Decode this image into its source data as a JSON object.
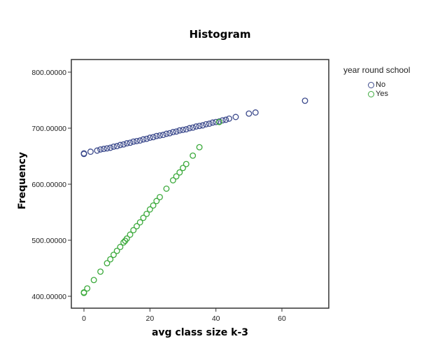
{
  "chart_data": {
    "type": "scatter",
    "title": "Histogram",
    "xlabel": "avg class size k-3",
    "ylabel": "Frequency",
    "xlim": [
      -4,
      74
    ],
    "ylim": [
      378,
      822
    ],
    "x_ticks": [
      0,
      20,
      40,
      60
    ],
    "y_ticks": [
      400,
      500,
      600,
      700,
      800
    ],
    "y_tick_labels": [
      "400.00000",
      "500.00000",
      "600.00000",
      "700.00000",
      "800.00000"
    ],
    "grid": false,
    "legend": {
      "title": "year round school",
      "position": "right"
    },
    "series": [
      {
        "name": "No",
        "color": "#3c4a8c",
        "points": [
          [
            0,
            655
          ],
          [
            0,
            654
          ],
          [
            2,
            658
          ],
          [
            4,
            660
          ],
          [
            5,
            662
          ],
          [
            6,
            663
          ],
          [
            7,
            664
          ],
          [
            8,
            665
          ],
          [
            9,
            667
          ],
          [
            10,
            668
          ],
          [
            11,
            670
          ],
          [
            12,
            671
          ],
          [
            13,
            673
          ],
          [
            14,
            674
          ],
          [
            15,
            676
          ],
          [
            16,
            677
          ],
          [
            17,
            678
          ],
          [
            18,
            680
          ],
          [
            19,
            681
          ],
          [
            20,
            683
          ],
          [
            21,
            684
          ],
          [
            22,
            686
          ],
          [
            23,
            687
          ],
          [
            24,
            688
          ],
          [
            25,
            690
          ],
          [
            26,
            691
          ],
          [
            27,
            693
          ],
          [
            28,
            694
          ],
          [
            29,
            696
          ],
          [
            30,
            697
          ],
          [
            31,
            698
          ],
          [
            32,
            700
          ],
          [
            33,
            701
          ],
          [
            34,
            703
          ],
          [
            35,
            704
          ],
          [
            36,
            705
          ],
          [
            37,
            707
          ],
          [
            38,
            708
          ],
          [
            39,
            710
          ],
          [
            40,
            711
          ],
          [
            41,
            712
          ],
          [
            42,
            714
          ],
          [
            43,
            715
          ],
          [
            44,
            717
          ],
          [
            46,
            720
          ],
          [
            50,
            726
          ],
          [
            52,
            728
          ],
          [
            67,
            749
          ]
        ]
      },
      {
        "name": "Yes",
        "color": "#3caa3c",
        "points": [
          [
            0,
            407
          ],
          [
            0,
            406
          ],
          [
            1,
            414
          ],
          [
            3,
            429
          ],
          [
            5,
            444
          ],
          [
            7,
            459
          ],
          [
            8,
            466
          ],
          [
            9,
            474
          ],
          [
            10,
            481
          ],
          [
            11,
            488
          ],
          [
            12,
            496
          ],
          [
            12.5,
            499
          ],
          [
            13,
            503
          ],
          [
            14,
            510
          ],
          [
            15,
            518
          ],
          [
            16,
            525
          ],
          [
            17,
            532
          ],
          [
            18,
            540
          ],
          [
            19,
            547
          ],
          [
            20,
            555
          ],
          [
            21,
            562
          ],
          [
            22,
            570
          ],
          [
            23,
            577
          ],
          [
            25,
            592
          ],
          [
            27,
            607
          ],
          [
            28,
            614
          ],
          [
            29,
            621
          ],
          [
            30,
            629
          ],
          [
            31,
            636
          ],
          [
            33,
            651
          ],
          [
            35,
            666
          ],
          [
            41,
            711
          ]
        ]
      }
    ]
  }
}
